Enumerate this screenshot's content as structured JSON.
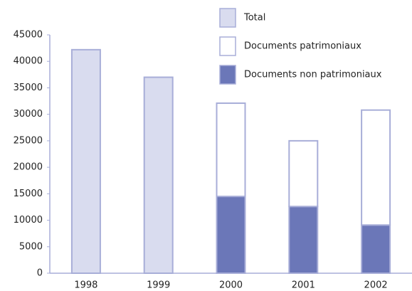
{
  "chart_data": {
    "type": "stacked_bar",
    "categories": [
      "1998",
      "1999",
      "2000",
      "2001",
      "2002"
    ],
    "series": [
      {
        "name": "Total",
        "color": "#d9dcef",
        "values": [
          42200,
          37000,
          null,
          null,
          null
        ]
      },
      {
        "name": "Documents patrimoniaux",
        "color": "#ffffff",
        "values": [
          null,
          null,
          17600,
          12400,
          21700
        ]
      },
      {
        "name": "Documents non patrimoniaux",
        "color": "#6b77b8",
        "values": [
          null,
          null,
          14500,
          12600,
          9100
        ]
      }
    ],
    "ylim": [
      0,
      45000
    ],
    "yticks": [
      0,
      5000,
      10000,
      15000,
      20000,
      25000,
      30000,
      35000,
      40000,
      45000
    ],
    "grid": false,
    "legend": "top-right"
  }
}
